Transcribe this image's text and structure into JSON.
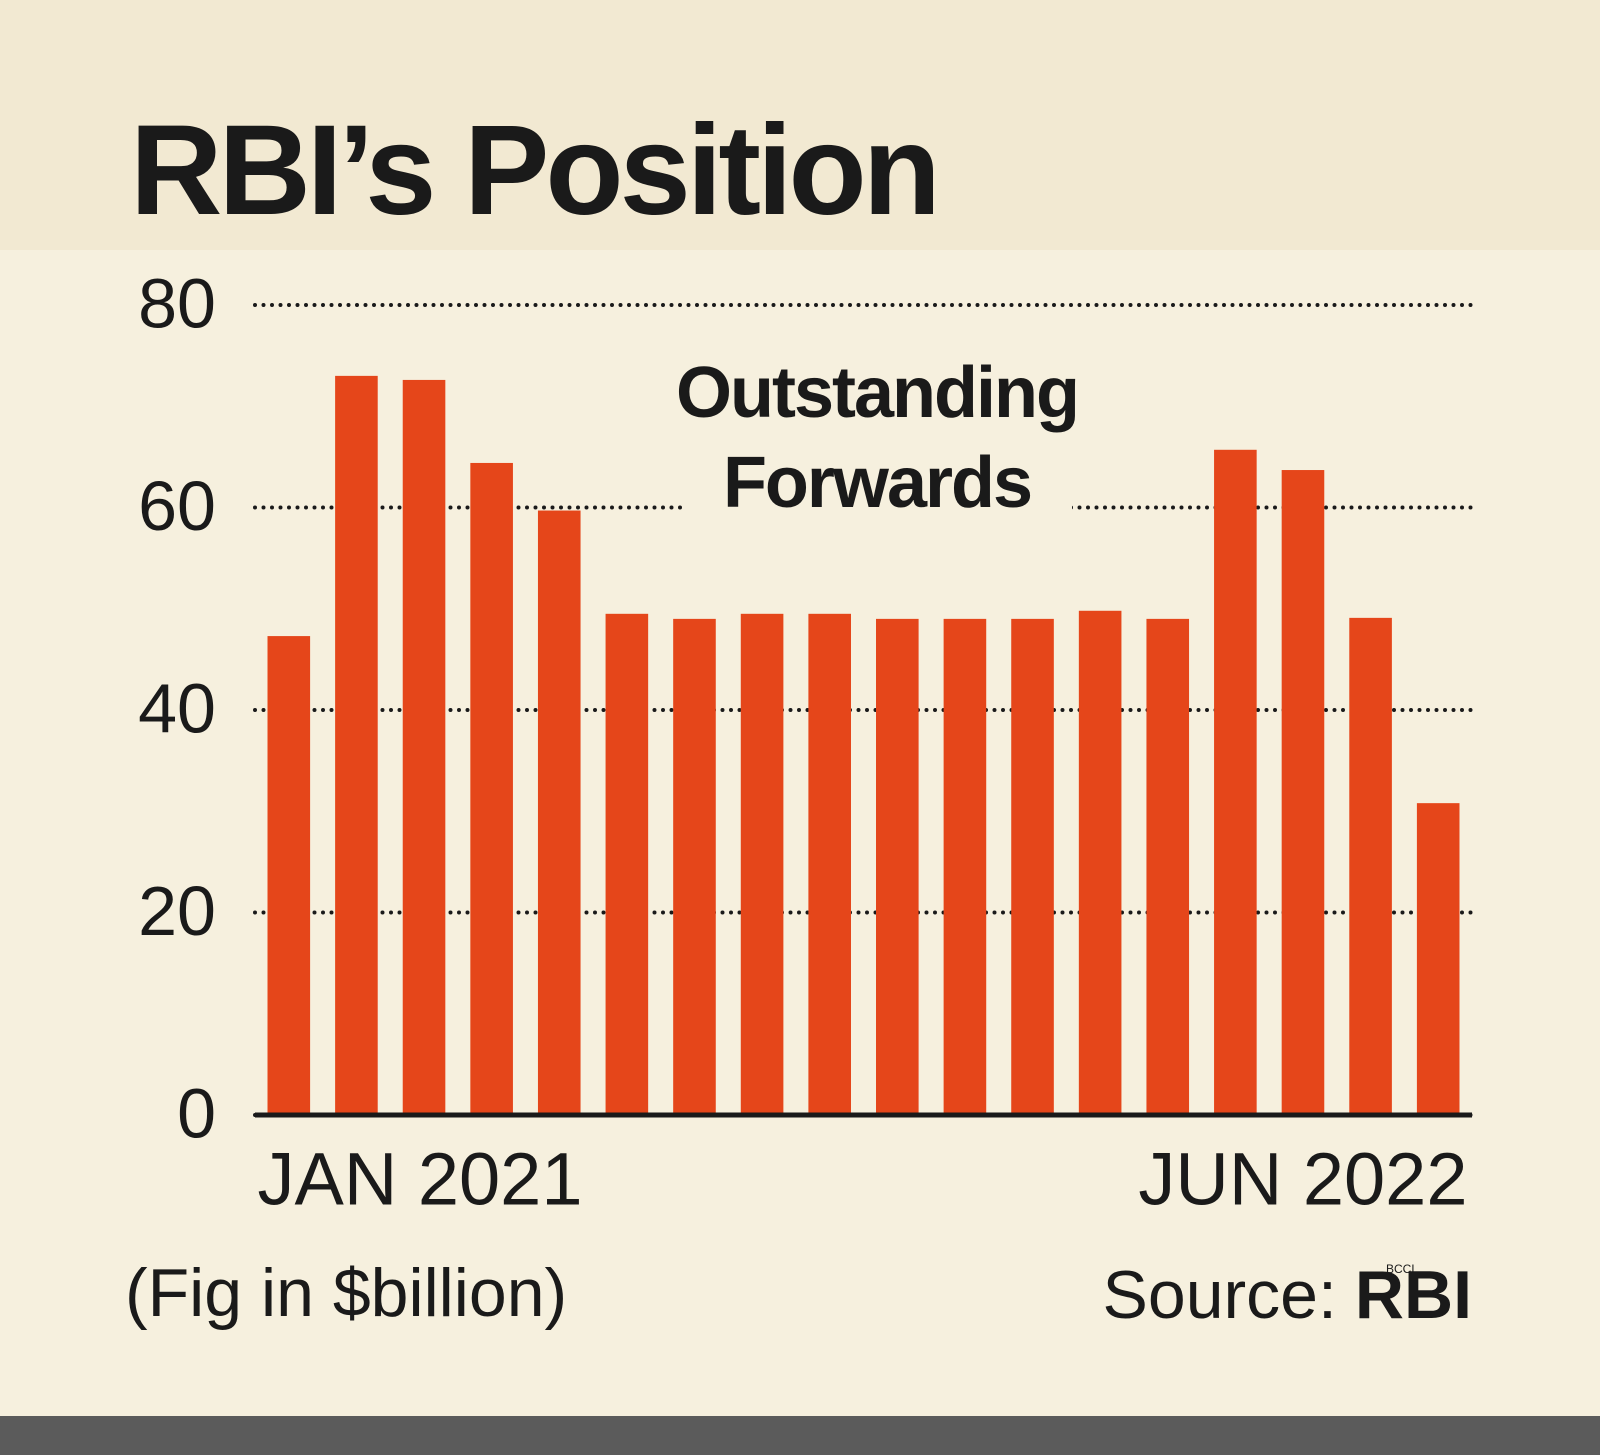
{
  "chart_data": {
    "type": "bar",
    "title": "RBI’s Position",
    "annotation": [
      "Outstanding",
      "Forwards"
    ],
    "categories": [
      "JAN 2021",
      null,
      null,
      null,
      null,
      null,
      null,
      null,
      null,
      null,
      null,
      null,
      null,
      null,
      null,
      null,
      null,
      "JUN 2022"
    ],
    "values": [
      47.3,
      73.0,
      72.6,
      64.4,
      59.7,
      49.5,
      49.0,
      49.5,
      49.5,
      49.0,
      49.0,
      49.0,
      49.8,
      49.0,
      65.7,
      63.7,
      49.1,
      30.8
    ],
    "color": "#e5461a",
    "ylim": [
      0,
      80
    ],
    "yticks": [
      0,
      20,
      40,
      60,
      80
    ],
    "grid": true,
    "footnote": "(Fig in $billion)",
    "source_label": "Source:",
    "source": "RBI",
    "watermark": "BCCL"
  }
}
